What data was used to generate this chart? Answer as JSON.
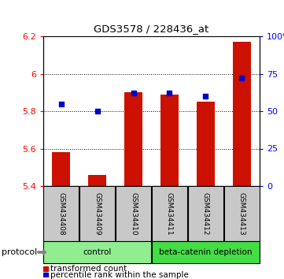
{
  "title": "GDS3578 / 228436_at",
  "categories": [
    "GSM434408",
    "GSM434409",
    "GSM434410",
    "GSM434411",
    "GSM434412",
    "GSM434413"
  ],
  "red_values": [
    5.58,
    5.46,
    5.9,
    5.89,
    5.85,
    6.17
  ],
  "blue_values": [
    55,
    50,
    62,
    62,
    60,
    72
  ],
  "ylim_left": [
    5.4,
    6.2
  ],
  "ylim_right": [
    0,
    100
  ],
  "yticks_left": [
    5.4,
    5.6,
    5.8,
    6.0,
    6.2
  ],
  "yticks_right": [
    0,
    25,
    50,
    75,
    100
  ],
  "ytick_labels_left": [
    "5.4",
    "5.6",
    "5.8",
    "6",
    "6.2"
  ],
  "ytick_labels_right": [
    "0",
    "25",
    "50",
    "75",
    "100%"
  ],
  "groups": [
    {
      "label": "control",
      "indices": [
        0,
        1,
        2
      ],
      "color": "#90EE90"
    },
    {
      "label": "beta-catenin depletion",
      "indices": [
        3,
        4,
        5
      ],
      "color": "#44DD44"
    }
  ],
  "protocol_label": "protocol",
  "legend_red": "transformed count",
  "legend_blue": "percentile rank within the sample",
  "bar_color": "#CC1100",
  "dot_color": "#0000CC",
  "background_label": "#C8C8C8",
  "base_value": 5.4
}
